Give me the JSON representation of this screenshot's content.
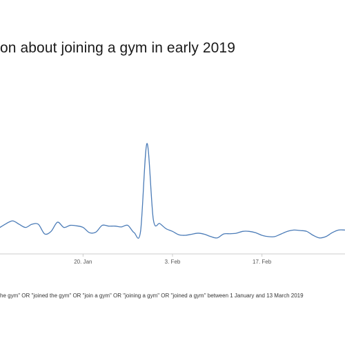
{
  "chart_data": {
    "type": "line",
    "title": "on about joining a gym in early 2019",
    "caption": "he gym\" OR \"joined the gym\" OR \"join a gym\" OR \"joining a gym\" OR \"joined a gym\" between 1 January and 13 March 2019",
    "xlabel": "",
    "ylabel": "",
    "grid": false,
    "x_ticks": [
      {
        "date": "2019-01-20",
        "label": "20. Jan"
      },
      {
        "date": "2019-02-03",
        "label": "3. Feb"
      },
      {
        "date": "2019-02-17",
        "label": "17. Feb"
      }
    ],
    "series": [
      {
        "color": "#4a7bb7",
        "x": [
          "2019-01-07",
          "2019-01-08",
          "2019-01-09",
          "2019-01-10",
          "2019-01-11",
          "2019-01-12",
          "2019-01-13",
          "2019-01-14",
          "2019-01-15",
          "2019-01-16",
          "2019-01-17",
          "2019-01-18",
          "2019-01-19",
          "2019-01-20",
          "2019-01-21",
          "2019-01-22",
          "2019-01-23",
          "2019-01-24",
          "2019-01-25",
          "2019-01-26",
          "2019-01-27",
          "2019-01-28",
          "2019-01-29",
          "2019-01-30",
          "2019-01-31",
          "2019-02-01",
          "2019-02-02",
          "2019-02-03",
          "2019-02-04",
          "2019-02-05",
          "2019-02-06",
          "2019-02-07",
          "2019-02-08",
          "2019-02-09",
          "2019-02-10",
          "2019-02-11",
          "2019-02-12",
          "2019-02-13",
          "2019-02-14",
          "2019-02-15",
          "2019-02-16",
          "2019-02-17",
          "2019-02-18",
          "2019-02-19",
          "2019-02-20",
          "2019-02-21",
          "2019-02-22",
          "2019-02-23",
          "2019-02-24",
          "2019-02-25",
          "2019-02-26",
          "2019-02-27",
          "2019-02-28",
          "2019-03-01",
          "2019-03-02"
        ],
        "y": [
          80,
          95,
          105,
          92,
          80,
          92,
          92,
          55,
          65,
          100,
          80,
          88,
          86,
          80,
          60,
          62,
          88,
          85,
          85,
          82,
          88,
          60,
          65,
          400,
          110,
          95,
          75,
          65,
          52,
          50,
          54,
          58,
          54,
          45,
          40,
          55,
          56,
          58,
          65,
          65,
          60,
          50,
          45,
          45,
          55,
          65,
          70,
          68,
          65,
          50,
          40,
          45,
          60,
          70,
          70
        ]
      }
    ]
  }
}
